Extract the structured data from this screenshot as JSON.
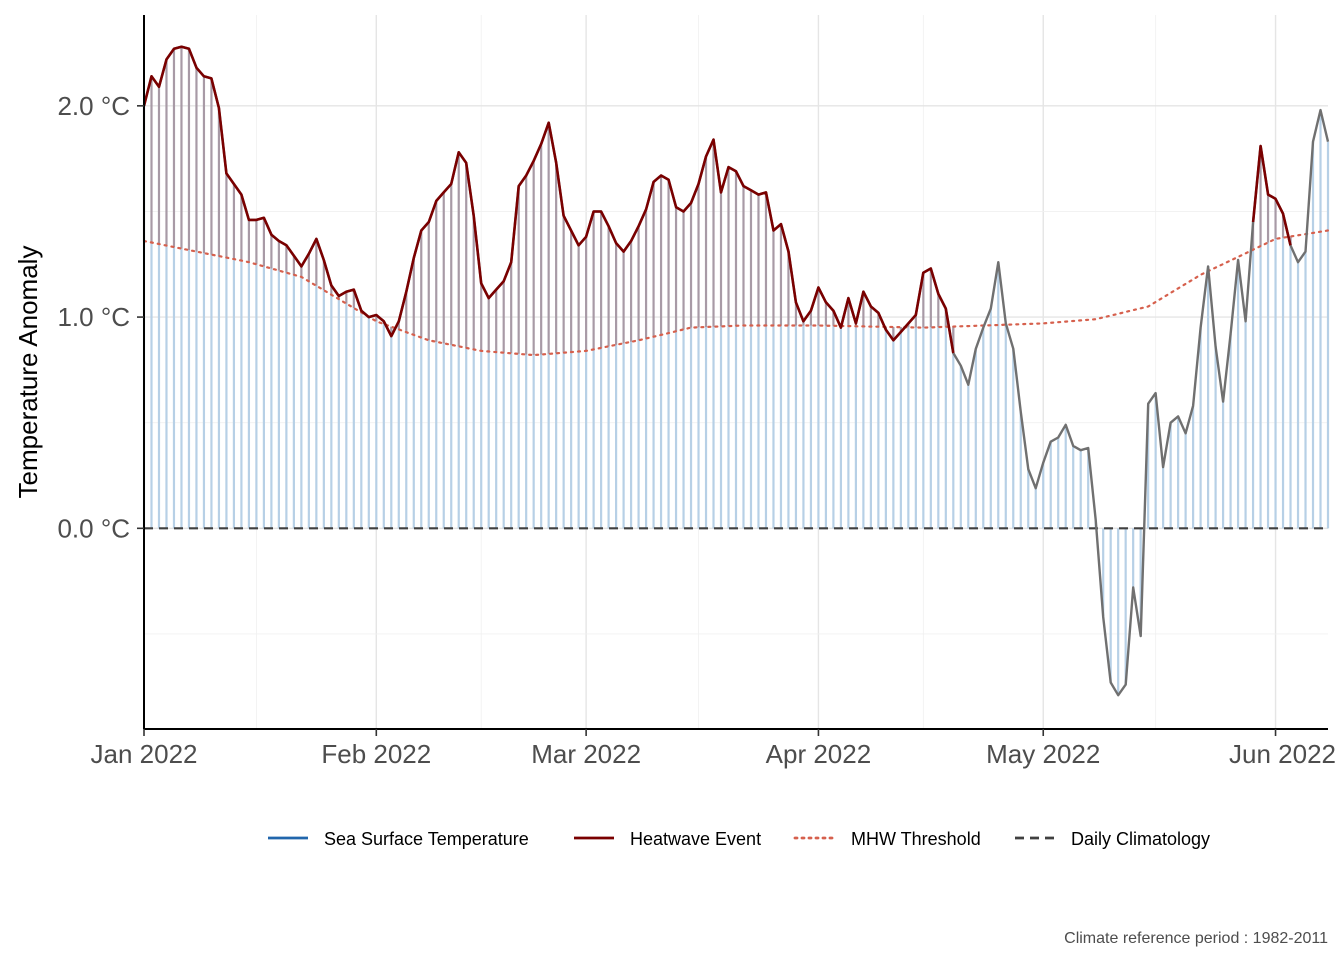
{
  "chart_data": {
    "type": "line",
    "ylabel": "Temperature Anomaly",
    "xlabel": "",
    "x_ticks": [
      "Jan 2022",
      "Feb 2022",
      "Mar 2022",
      "Apr 2022",
      "May 2022",
      "Jun 2022"
    ],
    "y_ticks": [
      "0.0 °C",
      "1.0 °C",
      "2.0 °C"
    ],
    "xlim": [
      "2022-01-01",
      "2022-06-08"
    ],
    "ylim": [
      -0.95,
      2.43
    ],
    "grid": true,
    "legend_position": "bottom",
    "caption": "Climate reference period :  1982-2011",
    "colors": {
      "sst": "#2166ac",
      "heatwave": "#7a0000",
      "threshold": "#d6604d",
      "climatology": "#404040",
      "sst_line": "#707070",
      "anomaly_fill": "#b7d0e6",
      "event_fill": "#a89aa6"
    },
    "series": [
      {
        "name": "Sea Surface Temperature",
        "style": "solid"
      },
      {
        "name": "Heatwave Event",
        "style": "solid"
      },
      {
        "name": "MHW Threshold",
        "style": "dotted"
      },
      {
        "name": "Daily Climatology",
        "style": "dashed"
      }
    ],
    "climatology_value": 0.0,
    "sst_anomaly": [
      [
        "2022-01-01",
        2.0
      ],
      [
        "2022-01-02",
        2.14
      ],
      [
        "2022-01-03",
        2.09
      ],
      [
        "2022-01-04",
        2.22
      ],
      [
        "2022-01-05",
        2.27
      ],
      [
        "2022-01-06",
        2.28
      ],
      [
        "2022-01-07",
        2.27
      ],
      [
        "2022-01-08",
        2.18
      ],
      [
        "2022-01-09",
        2.14
      ],
      [
        "2022-01-10",
        2.13
      ],
      [
        "2022-01-11",
        1.99
      ],
      [
        "2022-01-12",
        1.68
      ],
      [
        "2022-01-13",
        1.63
      ],
      [
        "2022-01-14",
        1.58
      ],
      [
        "2022-01-15",
        1.46
      ],
      [
        "2022-01-16",
        1.46
      ],
      [
        "2022-01-17",
        1.47
      ],
      [
        "2022-01-18",
        1.39
      ],
      [
        "2022-01-19",
        1.36
      ],
      [
        "2022-01-20",
        1.34
      ],
      [
        "2022-01-21",
        1.29
      ],
      [
        "2022-01-22",
        1.24
      ],
      [
        "2022-01-23",
        1.3
      ],
      [
        "2022-01-24",
        1.37
      ],
      [
        "2022-01-25",
        1.27
      ],
      [
        "2022-01-26",
        1.15
      ],
      [
        "2022-01-27",
        1.1
      ],
      [
        "2022-01-28",
        1.12
      ],
      [
        "2022-01-29",
        1.13
      ],
      [
        "2022-01-30",
        1.03
      ],
      [
        "2022-01-31",
        1.0
      ],
      [
        "2022-02-01",
        1.01
      ],
      [
        "2022-02-02",
        0.98
      ],
      [
        "2022-02-03",
        0.91
      ],
      [
        "2022-02-04",
        0.98
      ],
      [
        "2022-02-05",
        1.12
      ],
      [
        "2022-02-06",
        1.28
      ],
      [
        "2022-02-07",
        1.41
      ],
      [
        "2022-02-08",
        1.45
      ],
      [
        "2022-02-09",
        1.55
      ],
      [
        "2022-02-10",
        1.59
      ],
      [
        "2022-02-11",
        1.63
      ],
      [
        "2022-02-12",
        1.78
      ],
      [
        "2022-02-13",
        1.73
      ],
      [
        "2022-02-14",
        1.48
      ],
      [
        "2022-02-15",
        1.16
      ],
      [
        "2022-02-16",
        1.09
      ],
      [
        "2022-02-17",
        1.13
      ],
      [
        "2022-02-18",
        1.17
      ],
      [
        "2022-02-19",
        1.26
      ],
      [
        "2022-02-20",
        1.62
      ],
      [
        "2022-02-21",
        1.67
      ],
      [
        "2022-02-22",
        1.74
      ],
      [
        "2022-02-23",
        1.82
      ],
      [
        "2022-02-24",
        1.92
      ],
      [
        "2022-02-25",
        1.73
      ],
      [
        "2022-02-26",
        1.48
      ],
      [
        "2022-02-27",
        1.41
      ],
      [
        "2022-02-28",
        1.34
      ],
      [
        "2022-03-01",
        1.38
      ],
      [
        "2022-03-02",
        1.5
      ],
      [
        "2022-03-03",
        1.5
      ],
      [
        "2022-03-04",
        1.43
      ],
      [
        "2022-03-05",
        1.35
      ],
      [
        "2022-03-06",
        1.31
      ],
      [
        "2022-03-07",
        1.36
      ],
      [
        "2022-03-08",
        1.43
      ],
      [
        "2022-03-09",
        1.51
      ],
      [
        "2022-03-10",
        1.64
      ],
      [
        "2022-03-11",
        1.67
      ],
      [
        "2022-03-12",
        1.65
      ],
      [
        "2022-03-13",
        1.52
      ],
      [
        "2022-03-14",
        1.5
      ],
      [
        "2022-03-15",
        1.54
      ],
      [
        "2022-03-16",
        1.63
      ],
      [
        "2022-03-17",
        1.76
      ],
      [
        "2022-03-18",
        1.84
      ],
      [
        "2022-03-19",
        1.59
      ],
      [
        "2022-03-20",
        1.71
      ],
      [
        "2022-03-21",
        1.69
      ],
      [
        "2022-03-22",
        1.62
      ],
      [
        "2022-03-23",
        1.6
      ],
      [
        "2022-03-24",
        1.58
      ],
      [
        "2022-03-25",
        1.59
      ],
      [
        "2022-03-26",
        1.41
      ],
      [
        "2022-03-27",
        1.44
      ],
      [
        "2022-03-28",
        1.31
      ],
      [
        "2022-03-29",
        1.07
      ],
      [
        "2022-03-30",
        0.98
      ],
      [
        "2022-03-31",
        1.03
      ],
      [
        "2022-04-01",
        1.14
      ],
      [
        "2022-04-02",
        1.07
      ],
      [
        "2022-04-03",
        1.03
      ],
      [
        "2022-04-04",
        0.95
      ],
      [
        "2022-04-05",
        1.09
      ],
      [
        "2022-04-06",
        0.97
      ],
      [
        "2022-04-07",
        1.12
      ],
      [
        "2022-04-08",
        1.05
      ],
      [
        "2022-04-09",
        1.02
      ],
      [
        "2022-04-10",
        0.94
      ],
      [
        "2022-04-11",
        0.89
      ],
      [
        "2022-04-12",
        0.93
      ],
      [
        "2022-04-13",
        0.97
      ],
      [
        "2022-04-14",
        1.01
      ],
      [
        "2022-04-15",
        1.21
      ],
      [
        "2022-04-16",
        1.23
      ],
      [
        "2022-04-17",
        1.11
      ],
      [
        "2022-04-18",
        1.04
      ],
      [
        "2022-04-19",
        0.83
      ],
      [
        "2022-04-20",
        0.77
      ],
      [
        "2022-04-21",
        0.68
      ],
      [
        "2022-04-22",
        0.85
      ],
      [
        "2022-04-23",
        0.95
      ],
      [
        "2022-04-24",
        1.04
      ],
      [
        "2022-04-25",
        1.26
      ],
      [
        "2022-04-26",
        0.97
      ],
      [
        "2022-04-27",
        0.85
      ],
      [
        "2022-04-28",
        0.55
      ],
      [
        "2022-04-29",
        0.28
      ],
      [
        "2022-04-30",
        0.19
      ],
      [
        "2022-05-01",
        0.31
      ],
      [
        "2022-05-02",
        0.41
      ],
      [
        "2022-05-03",
        0.43
      ],
      [
        "2022-05-04",
        0.49
      ],
      [
        "2022-05-05",
        0.39
      ],
      [
        "2022-05-06",
        0.37
      ],
      [
        "2022-05-07",
        0.38
      ],
      [
        "2022-05-08",
        0.04
      ],
      [
        "2022-05-09",
        -0.42
      ],
      [
        "2022-05-10",
        -0.73
      ],
      [
        "2022-05-11",
        -0.79
      ],
      [
        "2022-05-12",
        -0.74
      ],
      [
        "2022-05-13",
        -0.28
      ],
      [
        "2022-05-14",
        -0.51
      ],
      [
        "2022-05-15",
        0.59
      ],
      [
        "2022-05-16",
        0.64
      ],
      [
        "2022-05-17",
        0.29
      ],
      [
        "2022-05-18",
        0.5
      ],
      [
        "2022-05-19",
        0.53
      ],
      [
        "2022-05-20",
        0.45
      ],
      [
        "2022-05-21",
        0.58
      ],
      [
        "2022-05-22",
        0.95
      ],
      [
        "2022-05-23",
        1.24
      ],
      [
        "2022-05-24",
        0.86
      ],
      [
        "2022-05-25",
        0.6
      ],
      [
        "2022-05-26",
        0.92
      ],
      [
        "2022-05-27",
        1.27
      ],
      [
        "2022-05-28",
        0.98
      ],
      [
        "2022-05-29",
        1.45
      ],
      [
        "2022-05-30",
        1.81
      ],
      [
        "2022-05-31",
        1.58
      ],
      [
        "2022-06-01",
        1.56
      ],
      [
        "2022-06-02",
        1.49
      ],
      [
        "2022-06-03",
        1.34
      ],
      [
        "2022-06-04",
        1.26
      ],
      [
        "2022-06-05",
        1.31
      ],
      [
        "2022-06-06",
        1.83
      ],
      [
        "2022-06-07",
        1.98
      ],
      [
        "2022-06-08",
        1.83
      ]
    ],
    "heatwave_events": [
      {
        "start": "2022-01-01",
        "end": "2022-04-19"
      },
      {
        "start": "2022-05-29",
        "end": "2022-06-03"
      }
    ],
    "mhw_threshold": [
      [
        "2022-01-01",
        1.36
      ],
      [
        "2022-01-15",
        1.26
      ],
      [
        "2022-01-22",
        1.19
      ],
      [
        "2022-02-01",
        0.98
      ],
      [
        "2022-02-08",
        0.89
      ],
      [
        "2022-02-15",
        0.84
      ],
      [
        "2022-02-22",
        0.82
      ],
      [
        "2022-03-01",
        0.84
      ],
      [
        "2022-03-08",
        0.89
      ],
      [
        "2022-03-15",
        0.95
      ],
      [
        "2022-03-22",
        0.96
      ],
      [
        "2022-04-01",
        0.96
      ],
      [
        "2022-04-15",
        0.95
      ],
      [
        "2022-05-01",
        0.97
      ],
      [
        "2022-05-08",
        0.99
      ],
      [
        "2022-05-15",
        1.05
      ],
      [
        "2022-05-22",
        1.2
      ],
      [
        "2022-06-01",
        1.37
      ],
      [
        "2022-06-08",
        1.41
      ]
    ]
  }
}
